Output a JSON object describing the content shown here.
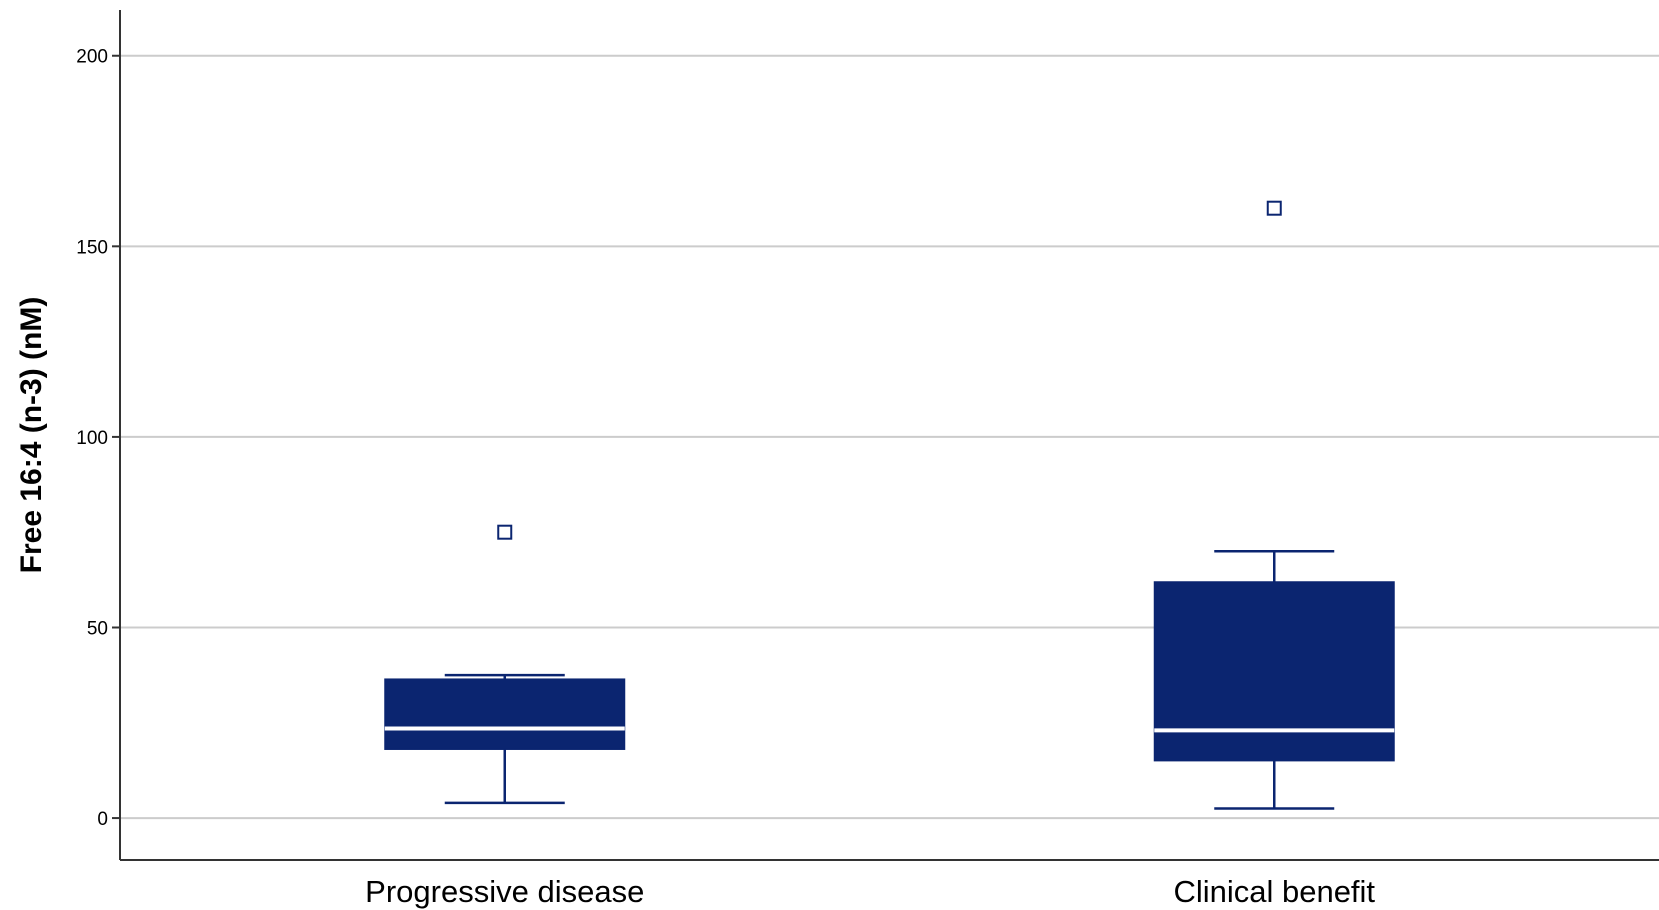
{
  "chart_data": {
    "type": "boxplot",
    "title": "",
    "xlabel": "",
    "ylabel": "Free 16:4 (n-3) (nM)",
    "ylim": [
      -11,
      212
    ],
    "yticks": [
      0,
      50,
      100,
      150,
      200
    ],
    "ytick_labels": [
      "0",
      "50",
      "100",
      "150",
      "200"
    ],
    "grid": "horizontal",
    "colors": {
      "box": "#0b2570",
      "median": "#ffffff",
      "gridline": "#cccccc",
      "axis": "#333333"
    },
    "categories": [
      "Progressive disease",
      "Clinical benefit"
    ],
    "boxes": [
      {
        "category": "Progressive disease",
        "whisker_low": 4,
        "q1": 18,
        "median": 23.5,
        "q3": 36.5,
        "whisker_high": 37.5,
        "outliers": [
          75
        ]
      },
      {
        "category": "Clinical benefit",
        "whisker_low": 2.5,
        "q1": 15,
        "median": 23,
        "q3": 62,
        "whisker_high": 70,
        "outliers": [
          160
        ]
      }
    ]
  }
}
